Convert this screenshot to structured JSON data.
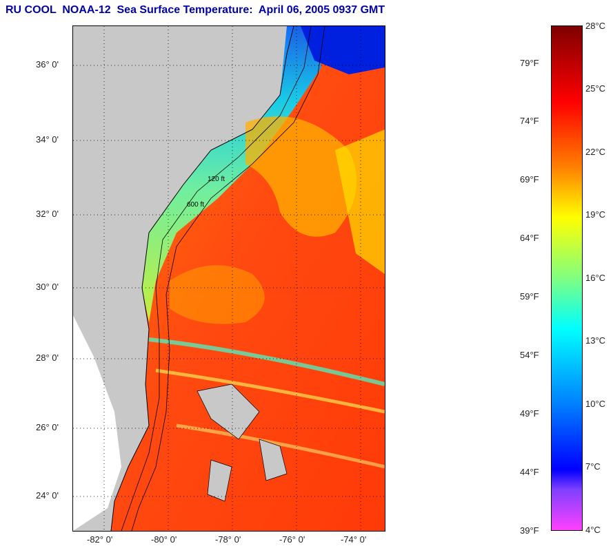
{
  "title": "RU COOL  NOAA-12  Sea Surface Temperature:  April 06, 2005 0937 GMT",
  "lat_labels": [
    "36° 0'",
    "34° 0'",
    "32° 0'",
    "30° 0'",
    "28° 0'",
    "26° 0'",
    "24° 0'"
  ],
  "lon_labels": [
    "-82° 0'",
    "-80° 0'",
    "-78° 0'",
    "-76° 0'",
    "-74° 0'"
  ],
  "contour_labels": [
    "120 ft",
    "600 ft"
  ],
  "colorbar": {
    "fahrenheit": [
      "79°F",
      "74°F",
      "69°F",
      "64°F",
      "59°F",
      "54°F",
      "49°F",
      "44°F",
      "39°F"
    ],
    "celsius": [
      "28°C",
      "25°C",
      "22°C",
      "19°C",
      "16°C",
      "13°C",
      "10°C",
      "7°C",
      "4°C"
    ]
  },
  "colors": {
    "title": "#0000a8",
    "land": "#c8c8c8",
    "warm": "#ff4a10",
    "cold": "#0000ff"
  }
}
